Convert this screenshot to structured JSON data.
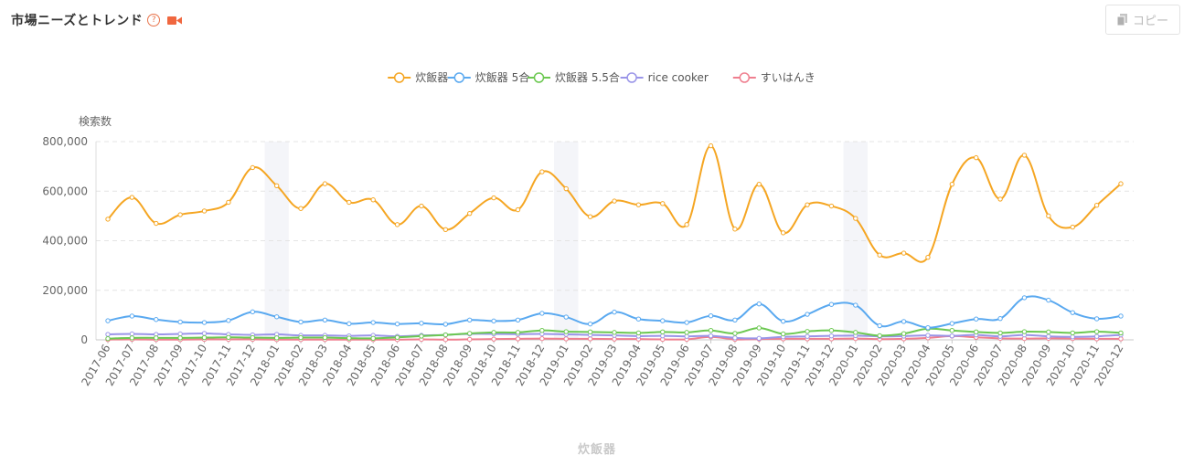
{
  "header": {
    "title": "市場ニーズとトレンド",
    "help_glyph": "?",
    "copy_label": "コピー"
  },
  "footer": {
    "label": "炊飯器"
  },
  "colors": {
    "series": [
      "#f5a623",
      "#5aa9f0",
      "#6cc851",
      "#9a95e8",
      "#ef7f8f"
    ],
    "band": "#f4f5f9",
    "grid": "#e4e4e4",
    "axis_text": "#666666",
    "video_icon": "#f0673f"
  },
  "chart_data": {
    "type": "line",
    "ylabel": "検索数",
    "ylim": [
      0,
      800000
    ],
    "yticks": [
      0,
      200000,
      400000,
      600000,
      800000
    ],
    "ytick_labels": [
      "0",
      "200,000",
      "400,000",
      "600,000",
      "800,000"
    ],
    "grid": true,
    "legend_position": "top-center",
    "highlight_bands": [
      "2018-01",
      "2019-01",
      "2020-01"
    ],
    "categories": [
      "2017-06",
      "2017-07",
      "2017-08",
      "2017-09",
      "2017-10",
      "2017-11",
      "2017-12",
      "2018-01",
      "2018-02",
      "2018-03",
      "2018-04",
      "2018-05",
      "2018-06",
      "2018-07",
      "2018-08",
      "2018-09",
      "2018-10",
      "2018-11",
      "2018-12",
      "2019-01",
      "2019-02",
      "2019-03",
      "2019-04",
      "2019-05",
      "2019-06",
      "2019-07",
      "2019-08",
      "2019-09",
      "2019-10",
      "2019-11",
      "2019-12",
      "2020-01",
      "2020-02",
      "2020-03",
      "2020-04",
      "2020-05",
      "2020-06",
      "2020-07",
      "2020-08",
      "2020-09",
      "2020-10",
      "2020-11",
      "2020-12"
    ],
    "series": [
      {
        "name": "炊飯器",
        "values": [
          487000,
          575000,
          470000,
          505000,
          520000,
          555000,
          695000,
          622000,
          530000,
          630000,
          555000,
          565000,
          465000,
          540000,
          445000,
          510000,
          573000,
          525000,
          678000,
          610000,
          497000,
          560000,
          545000,
          550000,
          465000,
          783000,
          447000,
          628000,
          432000,
          545000,
          540000,
          490000,
          342000,
          350000,
          333000,
          628000,
          735000,
          568000,
          745000,
          500000,
          455000,
          543000,
          630000
        ]
      },
      {
        "name": "炊飯器 5合",
        "values": [
          77000,
          96000,
          82000,
          72000,
          70000,
          78000,
          113000,
          93000,
          72000,
          80000,
          65000,
          70000,
          64000,
          67000,
          63000,
          80000,
          76000,
          80000,
          107000,
          92000,
          64000,
          112000,
          84000,
          77000,
          70000,
          97000,
          80000,
          145000,
          75000,
          103000,
          143000,
          140000,
          57000,
          74000,
          49000,
          66000,
          84000,
          86000,
          170000,
          160000,
          110000,
          85000,
          96000
        ]
      },
      {
        "name": "炊飯器 5.5合",
        "values": [
          5000,
          8000,
          8000,
          8000,
          9000,
          10000,
          9000,
          8000,
          9000,
          9000,
          7000,
          6000,
          10000,
          15000,
          20000,
          26000,
          30000,
          30000,
          38000,
          33000,
          32000,
          30000,
          28000,
          32000,
          30000,
          38000,
          26000,
          48000,
          24000,
          34000,
          38000,
          30000,
          17000,
          25000,
          45000,
          38000,
          32000,
          28000,
          33000,
          32000,
          28000,
          33000,
          28000
        ]
      },
      {
        "name": "rice cooker",
        "values": [
          22000,
          24000,
          22000,
          24000,
          26000,
          22000,
          20000,
          22000,
          18000,
          18000,
          16000,
          18000,
          14000,
          18000,
          20000,
          24000,
          24000,
          23000,
          24000,
          22000,
          20000,
          18000,
          15000,
          16000,
          14000,
          16000,
          8000,
          6000,
          12000,
          14000,
          16000,
          17000,
          14000,
          15000,
          18000,
          16000,
          20000,
          14000,
          20000,
          14000,
          12000,
          14000,
          20000
        ]
      },
      {
        "name": "すいはんき",
        "values": [
          1000,
          2000,
          1000,
          1000,
          2000,
          2000,
          2000,
          1000,
          1000,
          1000,
          1000,
          1000,
          1000,
          2000,
          1000,
          2000,
          3000,
          4000,
          5000,
          4000,
          4000,
          3000,
          3000,
          2000,
          2000,
          12000,
          2000,
          3000,
          4000,
          4000,
          4000,
          5000,
          3000,
          4000,
          8000,
          15000,
          10000,
          6000,
          5000,
          6000,
          5000,
          4000,
          4000
        ]
      }
    ]
  }
}
